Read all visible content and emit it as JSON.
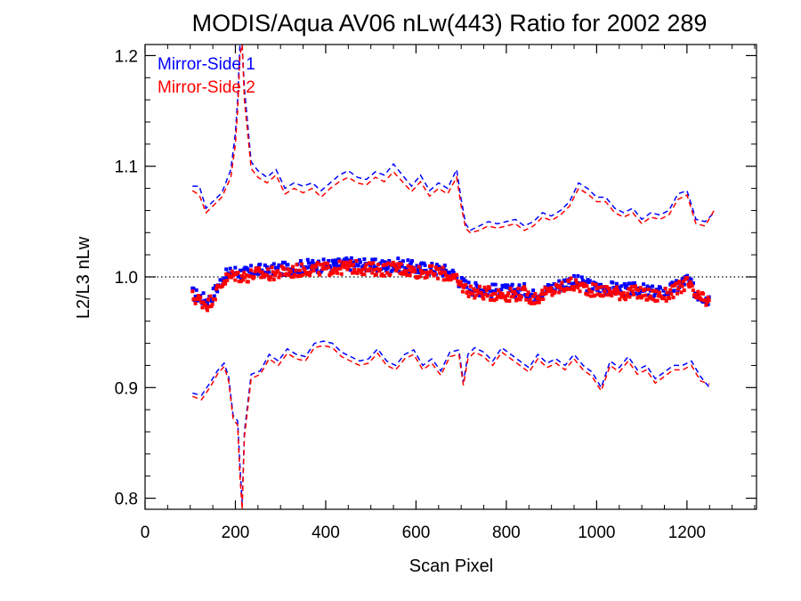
{
  "chart_data": {
    "type": "line",
    "title": "MODIS/Aqua AV06 nLw(443) Ratio for 2002 289",
    "xlabel": "Scan Pixel",
    "ylabel": "L2/L3 nLw",
    "xlim": [
      0,
      1354
    ],
    "ylim": [
      0.79,
      1.21
    ],
    "xticks": [
      "0",
      "200",
      "400",
      "600",
      "800",
      "1000",
      "1200"
    ],
    "yticks": [
      "0.8",
      "0.9",
      "1.0",
      "1.1",
      "1.2"
    ],
    "reference_line": {
      "y": 1.0,
      "style": "dotted",
      "color": "#000000"
    },
    "legend": {
      "placement": "top-left"
    },
    "series": [
      {
        "name": "Mirror-Side 1",
        "color": "#0000ff",
        "mean": {
          "x": [
            105,
            140,
            175,
            200,
            215,
            230,
            250,
            270,
            300,
            330,
            360,
            400,
            430,
            460,
            500,
            530,
            560,
            600,
            640,
            660,
            680,
            700,
            720,
            760,
            800,
            840,
            860,
            900,
            940,
            960,
            1000,
            1030,
            1060,
            1090,
            1120,
            1150,
            1180,
            1200,
            1220,
            1250
          ],
          "y": [
            0.985,
            0.978,
            1.0,
            1.005,
            1.003,
            1.004,
            1.006,
            1.005,
            1.007,
            1.008,
            1.01,
            1.01,
            1.011,
            1.012,
            1.01,
            1.01,
            1.011,
            1.008,
            1.007,
            1.006,
            1.003,
            0.995,
            0.99,
            0.988,
            0.987,
            0.988,
            0.983,
            0.99,
            0.996,
            0.995,
            0.99,
            0.99,
            0.988,
            0.989,
            0.986,
            0.986,
            0.992,
            0.998,
            0.985,
            0.98
          ]
        },
        "upper": {
          "x": [
            105,
            120,
            135,
            150,
            170,
            190,
            200,
            205,
            210,
            215,
            220,
            235,
            250,
            270,
            290,
            310,
            330,
            350,
            370,
            390,
            410,
            430,
            450,
            470,
            490,
            510,
            530,
            550,
            570,
            590,
            610,
            630,
            650,
            670,
            690,
            700,
            710,
            720,
            740,
            760,
            780,
            800,
            820,
            840,
            860,
            880,
            900,
            920,
            940,
            960,
            980,
            1000,
            1020,
            1040,
            1060,
            1080,
            1100,
            1120,
            1140,
            1160,
            1180,
            1200,
            1220,
            1240,
            1260
          ],
          "y": [
            1.082,
            1.082,
            1.062,
            1.068,
            1.076,
            1.097,
            1.13,
            1.16,
            1.21,
            1.21,
            1.17,
            1.104,
            1.096,
            1.09,
            1.097,
            1.08,
            1.085,
            1.082,
            1.085,
            1.078,
            1.085,
            1.092,
            1.096,
            1.09,
            1.088,
            1.095,
            1.092,
            1.102,
            1.092,
            1.082,
            1.092,
            1.078,
            1.085,
            1.08,
            1.097,
            1.07,
            1.048,
            1.042,
            1.046,
            1.05,
            1.048,
            1.05,
            1.052,
            1.046,
            1.05,
            1.058,
            1.055,
            1.06,
            1.068,
            1.085,
            1.08,
            1.072,
            1.072,
            1.062,
            1.058,
            1.062,
            1.052,
            1.058,
            1.056,
            1.06,
            1.075,
            1.078,
            1.052,
            1.05,
            1.058
          ]
        },
        "lower": {
          "x": [
            105,
            125,
            145,
            160,
            175,
            185,
            195,
            205,
            210,
            215,
            220,
            235,
            255,
            275,
            295,
            315,
            335,
            355,
            375,
            395,
            415,
            435,
            455,
            475,
            495,
            515,
            535,
            555,
            575,
            595,
            615,
            635,
            655,
            675,
            695,
            705,
            715,
            730,
            750,
            770,
            790,
            810,
            830,
            850,
            870,
            890,
            910,
            930,
            950,
            970,
            990,
            1010,
            1030,
            1050,
            1070,
            1090,
            1110,
            1130,
            1150,
            1170,
            1190,
            1210,
            1230,
            1250
          ],
          "y": [
            0.895,
            0.893,
            0.905,
            0.915,
            0.922,
            0.91,
            0.875,
            0.87,
            0.83,
            0.795,
            0.86,
            0.912,
            0.915,
            0.93,
            0.924,
            0.935,
            0.93,
            0.928,
            0.94,
            0.942,
            0.94,
            0.932,
            0.928,
            0.924,
            0.926,
            0.935,
            0.924,
            0.92,
            0.93,
            0.934,
            0.92,
            0.926,
            0.915,
            0.932,
            0.934,
            0.905,
            0.93,
            0.936,
            0.932,
            0.924,
            0.936,
            0.93,
            0.924,
            0.918,
            0.93,
            0.922,
            0.926,
            0.92,
            0.93,
            0.92,
            0.914,
            0.9,
            0.924,
            0.918,
            0.928,
            0.916,
            0.92,
            0.908,
            0.914,
            0.92,
            0.92,
            0.924,
            0.91,
            0.9
          ]
        }
      },
      {
        "name": "Mirror-Side 2",
        "color": "#ff0000",
        "mean": {
          "x": [
            105,
            140,
            175,
            200,
            215,
            230,
            250,
            270,
            300,
            330,
            360,
            400,
            430,
            460,
            500,
            530,
            560,
            600,
            640,
            660,
            680,
            700,
            720,
            760,
            800,
            840,
            860,
            900,
            940,
            960,
            1000,
            1030,
            1060,
            1090,
            1120,
            1150,
            1180,
            1200,
            1220,
            1250
          ],
          "y": [
            0.982,
            0.975,
            0.997,
            1.002,
            1.0,
            1.001,
            1.003,
            1.002,
            1.004,
            1.005,
            1.007,
            1.007,
            1.008,
            1.009,
            1.007,
            1.007,
            1.008,
            1.005,
            1.004,
            1.003,
            1.0,
            0.992,
            0.987,
            0.985,
            0.984,
            0.985,
            0.98,
            0.987,
            0.993,
            0.992,
            0.987,
            0.987,
            0.985,
            0.986,
            0.983,
            0.983,
            0.989,
            0.995,
            0.982,
            0.977
          ]
        },
        "upper": {
          "x": [
            105,
            120,
            135,
            150,
            170,
            190,
            200,
            205,
            210,
            215,
            220,
            235,
            250,
            270,
            290,
            310,
            330,
            350,
            370,
            390,
            410,
            430,
            450,
            470,
            490,
            510,
            530,
            550,
            570,
            590,
            610,
            630,
            650,
            670,
            690,
            700,
            710,
            720,
            740,
            760,
            780,
            800,
            820,
            840,
            860,
            880,
            900,
            920,
            940,
            960,
            980,
            1000,
            1020,
            1040,
            1060,
            1080,
            1100,
            1120,
            1140,
            1160,
            1180,
            1200,
            1220,
            1240,
            1260
          ],
          "y": [
            1.078,
            1.074,
            1.058,
            1.064,
            1.072,
            1.09,
            1.12,
            1.15,
            1.2,
            1.21,
            1.16,
            1.098,
            1.09,
            1.085,
            1.092,
            1.075,
            1.08,
            1.076,
            1.08,
            1.072,
            1.08,
            1.086,
            1.09,
            1.085,
            1.083,
            1.09,
            1.086,
            1.095,
            1.086,
            1.077,
            1.086,
            1.073,
            1.08,
            1.075,
            1.09,
            1.064,
            1.044,
            1.04,
            1.042,
            1.046,
            1.044,
            1.046,
            1.048,
            1.042,
            1.046,
            1.054,
            1.051,
            1.056,
            1.064,
            1.08,
            1.075,
            1.068,
            1.068,
            1.058,
            1.054,
            1.058,
            1.048,
            1.054,
            1.052,
            1.056,
            1.07,
            1.074,
            1.048,
            1.046,
            1.06
          ]
        },
        "lower": {
          "x": [
            105,
            125,
            145,
            160,
            175,
            185,
            195,
            205,
            210,
            215,
            220,
            235,
            255,
            275,
            295,
            315,
            335,
            355,
            375,
            395,
            415,
            435,
            455,
            475,
            495,
            515,
            535,
            555,
            575,
            595,
            615,
            635,
            655,
            675,
            695,
            705,
            715,
            730,
            750,
            770,
            790,
            810,
            830,
            850,
            870,
            890,
            910,
            930,
            950,
            970,
            990,
            1010,
            1030,
            1050,
            1070,
            1090,
            1110,
            1130,
            1150,
            1170,
            1190,
            1210,
            1230,
            1250
          ],
          "y": [
            0.892,
            0.889,
            0.901,
            0.912,
            0.919,
            0.906,
            0.872,
            0.866,
            0.82,
            0.79,
            0.855,
            0.908,
            0.912,
            0.926,
            0.92,
            0.931,
            0.926,
            0.924,
            0.936,
            0.938,
            0.936,
            0.928,
            0.924,
            0.92,
            0.922,
            0.931,
            0.92,
            0.916,
            0.926,
            0.93,
            0.916,
            0.922,
            0.911,
            0.928,
            0.93,
            0.902,
            0.926,
            0.932,
            0.928,
            0.92,
            0.932,
            0.926,
            0.92,
            0.914,
            0.926,
            0.918,
            0.922,
            0.916,
            0.926,
            0.916,
            0.91,
            0.897,
            0.92,
            0.914,
            0.924,
            0.912,
            0.916,
            0.904,
            0.91,
            0.916,
            0.916,
            0.92,
            0.906,
            0.903
          ]
        }
      }
    ]
  }
}
